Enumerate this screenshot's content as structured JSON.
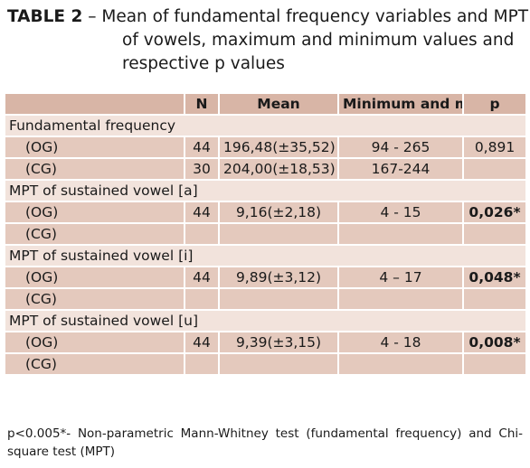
{
  "title": {
    "label": "TABLE 2",
    "line1": "– Mean of fundamental frequency variables and MPT",
    "line2": "of vowels, maximum and minimum values and",
    "line3": "respective p values"
  },
  "table": {
    "headers": {
      "n": "N",
      "mean": "Mean",
      "minmax": "Minimum and maximum values",
      "p": "p"
    },
    "sections": [
      {
        "label": "Fundamental frequency",
        "rows": [
          {
            "group": "(OG)",
            "n": "44",
            "mean": "196,48(±35,52)",
            "range": "94 - 265",
            "p": "0,891"
          },
          {
            "group": "(CG)",
            "n": "30",
            "mean": "204,00(±18,53)",
            "range": "167-244",
            "p": ""
          }
        ]
      },
      {
        "label": "MPT of sustained vowel [a]",
        "rows": [
          {
            "group": "(OG)",
            "n": "44",
            "mean": "9,16(±2,18)",
            "range": "4 - 15",
            "p": "0,026*"
          },
          {
            "group": "(CG)",
            "n": "",
            "mean": "",
            "range": "",
            "p": ""
          }
        ]
      },
      {
        "label": "MPT of sustained vowel [i]",
        "rows": [
          {
            "group": "(OG)",
            "n": "44",
            "mean": "9,89(±3,12)",
            "range": "4 – 17",
            "p": "0,048*"
          },
          {
            "group": "(CG)",
            "n": "",
            "mean": "",
            "range": "",
            "p": ""
          }
        ]
      },
      {
        "label": "MPT of sustained vowel [u]",
        "rows": [
          {
            "group": "(OG)",
            "n": "44",
            "mean": "9,39(±3,15)",
            "range": "4 - 18",
            "p": "0,008*"
          },
          {
            "group": "(CG)",
            "n": "",
            "mean": "",
            "range": "",
            "p": ""
          }
        ]
      }
    ]
  },
  "footnote": "p<0.005*- Non-parametric Mann-Whitney test (fundamental frequency) and Chi-square test (MPT)"
}
